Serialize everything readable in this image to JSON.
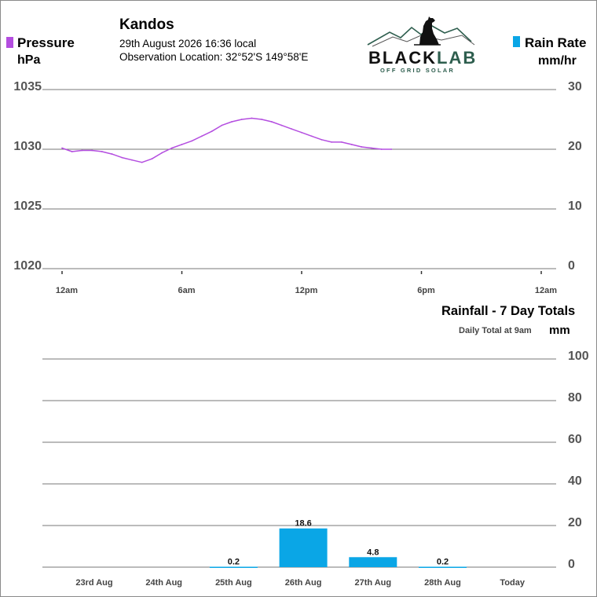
{
  "header": {
    "location": "Kandos",
    "datetime": "29th August 2026  16:36 local",
    "observation": "Observation Location: 32°52'S 149°58'E"
  },
  "logo": {
    "brand_main": "BLACK",
    "brand_accent": "LAB",
    "brand_sub": "OFF GRID SOLAR",
    "accent_color": "#2e5e4e"
  },
  "legend": {
    "pressure_label": "Pressure",
    "pressure_unit": "hPa",
    "pressure_color": "#b44ee0",
    "rain_rate_label": "Rain Rate",
    "rain_rate_unit": "mm/hr",
    "rain_color": "#0aa6e6"
  },
  "chart_data": [
    {
      "type": "line",
      "left_axis": {
        "ylim": [
          1020,
          1035
        ],
        "ticks": [
          "1035",
          "1030",
          "1025",
          "1020"
        ]
      },
      "right_axis": {
        "ylim": [
          0,
          30
        ],
        "ticks": [
          "30",
          "20",
          "10",
          "0"
        ]
      },
      "x_ticks": [
        "12am",
        "6am",
        "12pm",
        "6pm",
        "12am"
      ],
      "x_range_hours": [
        0,
        24
      ],
      "series": [
        {
          "name": "Pressure",
          "axis": "left",
          "x_hours": [
            0,
            0.5,
            1,
            1.5,
            2,
            2.5,
            3,
            3.5,
            4,
            4.5,
            5,
            5.5,
            6,
            6.5,
            7,
            7.5,
            8,
            8.5,
            9,
            9.5,
            10,
            10.5,
            11,
            11.5,
            12,
            12.5,
            13,
            13.5,
            14,
            14.5,
            15,
            15.5,
            16,
            16.5
          ],
          "values": [
            1030.1,
            1029.8,
            1029.9,
            1029.9,
            1029.8,
            1029.6,
            1029.3,
            1029.1,
            1028.9,
            1029.2,
            1029.7,
            1030.1,
            1030.4,
            1030.7,
            1031.1,
            1031.5,
            1032.0,
            1032.3,
            1032.5,
            1032.6,
            1032.5,
            1032.3,
            1032.0,
            1031.7,
            1031.4,
            1031.1,
            1030.8,
            1030.6,
            1030.6,
            1030.4,
            1030.2,
            1030.1,
            1030.0,
            1030.0
          ]
        },
        {
          "name": "Rain Rate",
          "axis": "right",
          "x_hours": [],
          "values": []
        }
      ]
    },
    {
      "type": "bar",
      "title": "Rainfall - 7 Day Totals",
      "subtitle": "Daily Total at 9am",
      "ylabel": "mm",
      "ylim": [
        0,
        100
      ],
      "y_ticks": [
        "100",
        "80",
        "60",
        "40",
        "20",
        "0"
      ],
      "categories": [
        "23rd Aug",
        "24th Aug",
        "25th Aug",
        "26th Aug",
        "27th Aug",
        "28th Aug",
        "Today"
      ],
      "values": [
        0,
        0,
        0.2,
        18.6,
        4.8,
        0.2,
        0
      ],
      "labels": [
        "",
        "",
        "0.2",
        "18.6",
        "4.8",
        "0.2",
        ""
      ]
    }
  ]
}
